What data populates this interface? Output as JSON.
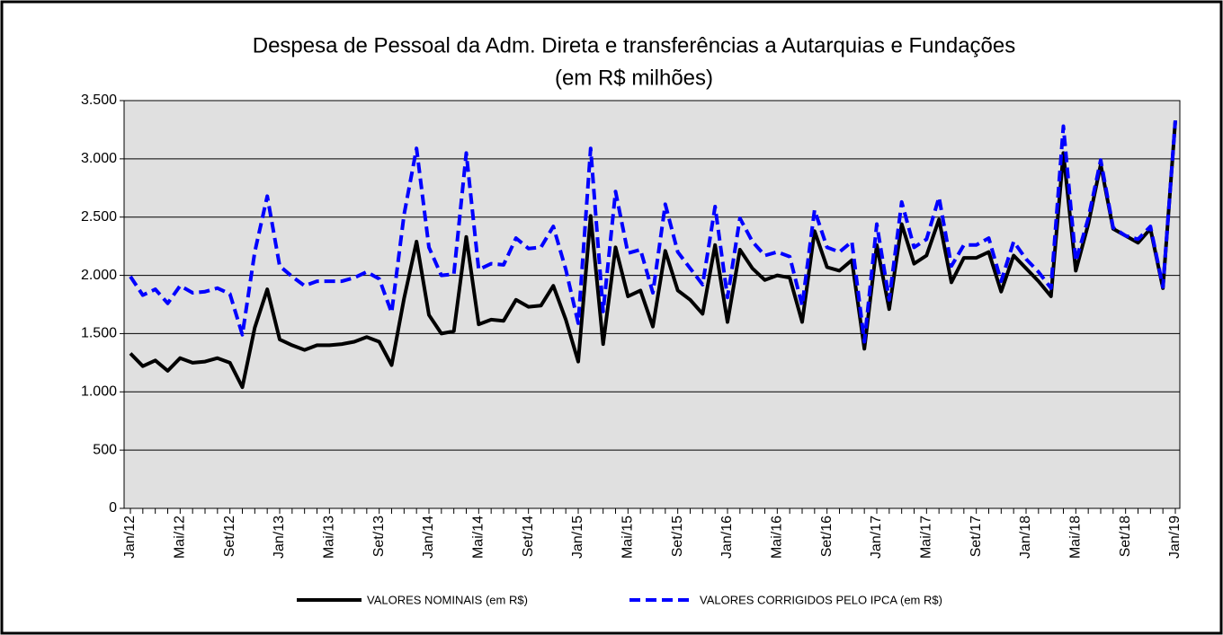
{
  "chart_data": {
    "type": "line",
    "title": "Despesa de Pessoal da Adm. Direta e transferências a Autarquias e Fundações",
    "subtitle": "(em R$ milhões)",
    "categories": [
      "Jan/12",
      null,
      null,
      null,
      "Mai/12",
      null,
      null,
      null,
      "Set/12",
      null,
      null,
      null,
      "Jan/13",
      null,
      null,
      null,
      "Mai/13",
      null,
      null,
      null,
      "Set/13",
      null,
      null,
      null,
      "Jan/14",
      null,
      null,
      null,
      "Mai/14",
      null,
      null,
      null,
      "Set/14",
      null,
      null,
      null,
      "Jan/15",
      null,
      null,
      null,
      "Mai/15",
      null,
      null,
      null,
      "Set/15",
      null,
      null,
      null,
      "Jan/16",
      null,
      null,
      null,
      "Mai/16",
      null,
      null,
      null,
      "Set/16",
      null,
      null,
      null,
      "Jan/17",
      null,
      null,
      null,
      "Mai/17",
      null,
      null,
      null,
      "Set/17",
      null,
      null,
      null,
      "Jan/18",
      null,
      null,
      null,
      "Mai/18",
      null,
      null,
      null,
      "Set/18",
      null,
      null,
      null,
      "Jan/19"
    ],
    "series": [
      {
        "name": "VALORES NOMINAIS (em R$)",
        "color": "#000000",
        "dashed": false,
        "values": [
          1330,
          1220,
          1270,
          1180,
          1290,
          1250,
          1260,
          1290,
          1250,
          1040,
          1550,
          1880,
          1450,
          1400,
          1360,
          1400,
          1400,
          1410,
          1430,
          1470,
          1430,
          1230,
          1800,
          2290,
          1660,
          1500,
          1520,
          2330,
          1580,
          1620,
          1610,
          1790,
          1730,
          1740,
          1910,
          1620,
          1260,
          2510,
          1410,
          2240,
          1820,
          1870,
          1560,
          2210,
          1870,
          1790,
          1670,
          2260,
          1600,
          2220,
          2060,
          1960,
          2000,
          1980,
          1600,
          2380,
          2070,
          2040,
          2130,
          1370,
          2260,
          1710,
          2440,
          2100,
          2170,
          2480,
          1940,
          2150,
          2150,
          2200,
          1860,
          2170,
          2060,
          1950,
          1820,
          3050,
          2040,
          2440,
          2950,
          2400,
          2340,
          2280,
          2400,
          1890,
          3330
        ]
      },
      {
        "name": "VALORES CORRIGIDOS PELO IPCA (em R$)",
        "color": "#0000ff",
        "dashed": true,
        "values": [
          1990,
          1830,
          1880,
          1760,
          1910,
          1850,
          1860,
          1890,
          1840,
          1490,
          2200,
          2680,
          2080,
          1990,
          1910,
          1950,
          1950,
          1950,
          1980,
          2030,
          1970,
          1680,
          2520,
          3090,
          2240,
          2000,
          2010,
          3050,
          2050,
          2100,
          2090,
          2320,
          2230,
          2240,
          2420,
          2050,
          1590,
          3090,
          1690,
          2720,
          2190,
          2220,
          1850,
          2610,
          2200,
          2060,
          1920,
          2590,
          1810,
          2490,
          2290,
          2170,
          2200,
          2160,
          1740,
          2560,
          2240,
          2200,
          2290,
          1430,
          2440,
          1790,
          2630,
          2240,
          2310,
          2670,
          2080,
          2260,
          2260,
          2320,
          1950,
          2290,
          2140,
          2030,
          1890,
          3280,
          2120,
          2490,
          2990,
          2410,
          2340,
          2310,
          2420,
          1900,
          3330
        ]
      }
    ],
    "ylim": [
      0,
      3500
    ],
    "yticks": [
      0,
      500,
      {
        "value": 1000,
        "label": "1.000"
      },
      {
        "value": 1500,
        "label": "1.500"
      },
      {
        "value": 2000,
        "label": "2.000"
      },
      {
        "value": 2500,
        "label": "2.500"
      },
      {
        "value": 3000,
        "label": "3.000"
      },
      {
        "value": 3500,
        "label": "3.500"
      }
    ],
    "grid": true,
    "legend": "bottom"
  }
}
